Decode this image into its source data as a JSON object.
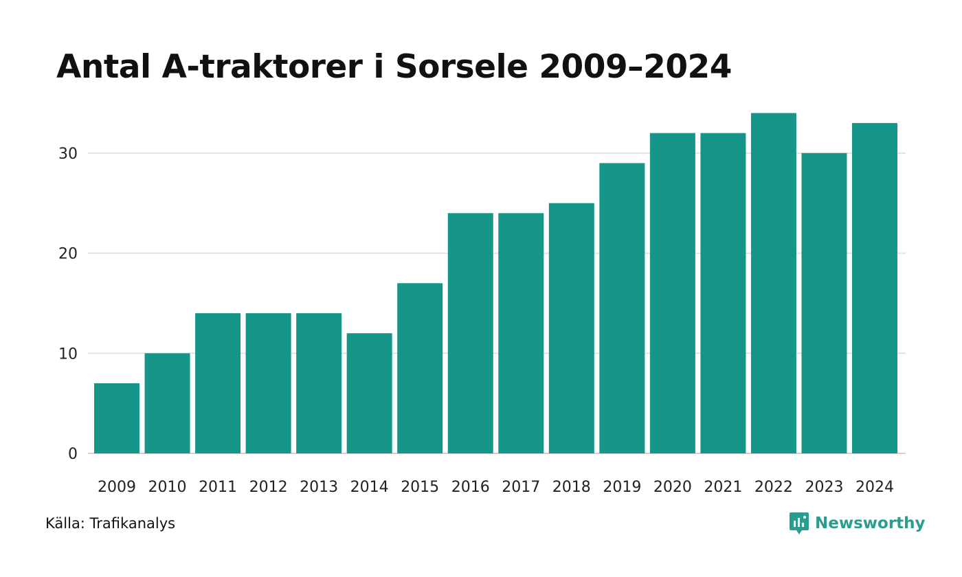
{
  "title": "Antal A-traktorer i Sorsele 2009–2024",
  "source": "Källa: Trafikanalys",
  "brand": {
    "name": "Newsworthy",
    "icon": "newsworthy-logo-icon",
    "color": "#2a9d8f"
  },
  "colors": {
    "bar": "#159688",
    "grid": "#e3e3e3",
    "axis": "#d0d0d0"
  },
  "chart_data": {
    "type": "bar",
    "title": "Antal A-traktorer i Sorsele 2009–2024",
    "xlabel": "",
    "ylabel": "",
    "categories": [
      "2009",
      "2010",
      "2011",
      "2012",
      "2013",
      "2014",
      "2015",
      "2016",
      "2017",
      "2018",
      "2019",
      "2020",
      "2021",
      "2022",
      "2023",
      "2024"
    ],
    "values": [
      7,
      10,
      14,
      14,
      14,
      12,
      17,
      24,
      24,
      25,
      29,
      32,
      32,
      34,
      30,
      33
    ],
    "yticks": [
      0,
      10,
      20,
      30
    ],
    "ylim": [
      0,
      35
    ],
    "grid": true,
    "legend": "none"
  }
}
